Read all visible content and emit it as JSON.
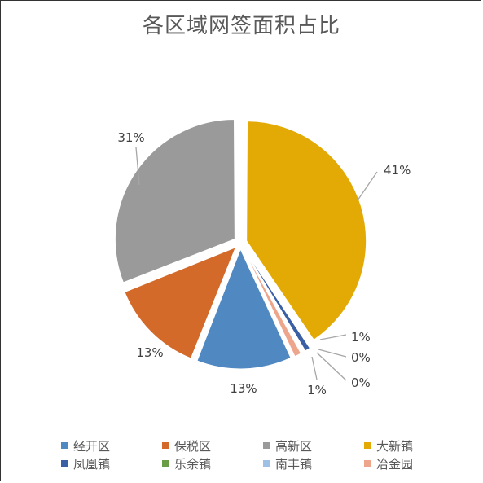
{
  "chart_data": {
    "type": "pie",
    "title": "各区域网签面积占比",
    "categories": [
      "经开区",
      "保税区",
      "高新区",
      "大新镇",
      "凤凰镇",
      "乐余镇",
      "南丰镇",
      "冶金园"
    ],
    "values": [
      13,
      13,
      31,
      41,
      1,
      0,
      0,
      1
    ],
    "labels": [
      "13%",
      "13%",
      "31%",
      "41%",
      "1%",
      "0%",
      "0%",
      "1%"
    ],
    "colors": [
      "#5088c2",
      "#d46a2a",
      "#9a9a9a",
      "#e3aa06",
      "#3a5fa4",
      "#6a9d45",
      "#9ec0e4",
      "#eda58c"
    ],
    "legend": "bottom"
  }
}
